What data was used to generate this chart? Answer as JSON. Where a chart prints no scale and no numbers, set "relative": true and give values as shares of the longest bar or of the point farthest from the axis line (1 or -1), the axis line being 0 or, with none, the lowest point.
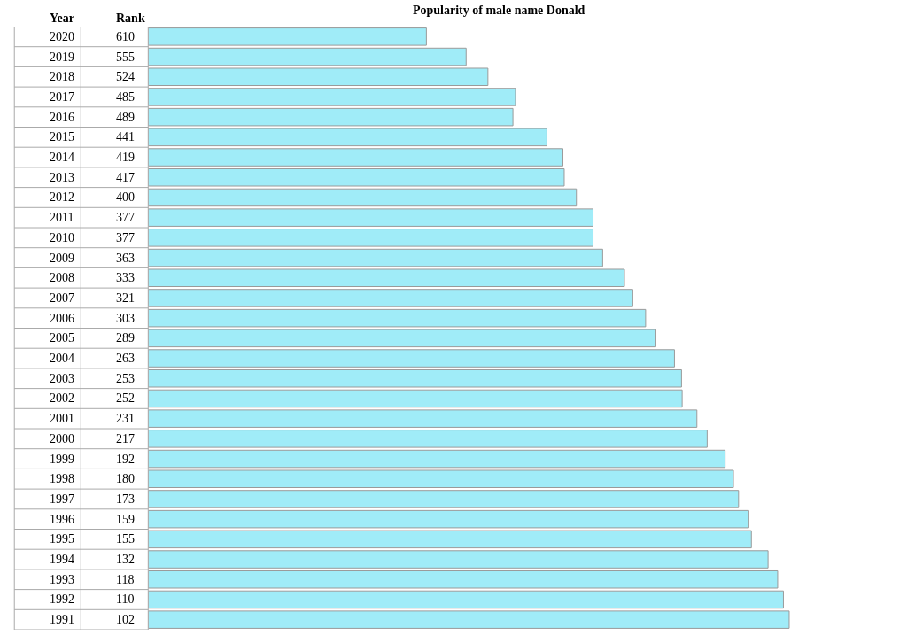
{
  "chart_data": [
    {
      "type": "bar",
      "orientation": "horizontal",
      "relative": true,
      "title": "Popularity of male name Donald",
      "ylabel": "Year",
      "categories": [
        "2020",
        "2019",
        "2018",
        "2017",
        "2016",
        "2015",
        "2014",
        "2013",
        "2012",
        "2011",
        "2010",
        "2009",
        "2008",
        "2007",
        "2006",
        "2005",
        "2004",
        "2003",
        "2002",
        "2001",
        "2000",
        "1999",
        "1998",
        "1997",
        "1996",
        "1995",
        "1994",
        "1993",
        "1992",
        "1991"
      ],
      "values": [
        0.434,
        0.496,
        0.53,
        0.573,
        0.569,
        0.622,
        0.647,
        0.649,
        0.668,
        0.694,
        0.694,
        0.709,
        0.743,
        0.756,
        0.776,
        0.792,
        0.821,
        0.832,
        0.833,
        0.856,
        0.872,
        0.9,
        0.913,
        0.921,
        0.937,
        0.941,
        0.967,
        0.982,
        0.991,
        1
      ],
      "color": "#a0ecf8"
    },
    {
      "type": "other",
      "annotations": [
        "Rank",
        "610",
        "555",
        "524",
        "485",
        "489",
        "441",
        "419",
        "417",
        "400",
        "377",
        "377",
        "363",
        "333",
        "321",
        "303",
        "289",
        "263",
        "253",
        "252",
        "231",
        "217",
        "192",
        "180",
        "173",
        "159",
        "155",
        "132",
        "118",
        "110",
        "102"
      ]
    }
  ]
}
